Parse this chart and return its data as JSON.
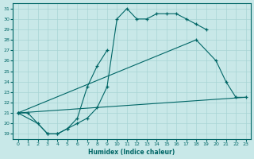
{
  "xlabel": "Humidex (Indice chaleur)",
  "background_color": "#c8e8e8",
  "line_color": "#006666",
  "grid_color": "#a8d4d4",
  "xlim": [
    -0.5,
    23.5
  ],
  "ylim": [
    18.5,
    31.5
  ],
  "xticks": [
    0,
    1,
    2,
    3,
    4,
    5,
    6,
    7,
    8,
    9,
    10,
    11,
    12,
    13,
    14,
    15,
    16,
    17,
    18,
    19,
    20,
    21,
    22,
    23
  ],
  "yticks": [
    19,
    20,
    21,
    22,
    23,
    24,
    25,
    26,
    27,
    28,
    29,
    30,
    31
  ],
  "line1_x": [
    0,
    2,
    3,
    4,
    5,
    6,
    7,
    8,
    9,
    10,
    11,
    12,
    13,
    14,
    15,
    16,
    17,
    18,
    19
  ],
  "line1_y": [
    21.0,
    20.0,
    19.0,
    19.0,
    19.5,
    20.0,
    20.5,
    21.5,
    23.5,
    30.0,
    31.0,
    30.0,
    30.0,
    30.5,
    30.5,
    30.5,
    30.0,
    29.5,
    29.0
  ],
  "line2_x": [
    0,
    1,
    3,
    4,
    5,
    6,
    7,
    8,
    9
  ],
  "line2_y": [
    21.0,
    21.0,
    19.0,
    19.0,
    19.5,
    20.5,
    23.5,
    25.5,
    27.0
  ],
  "line3_x": [
    0,
    18,
    20,
    21,
    22,
    23
  ],
  "line3_y": [
    21.0,
    28.0,
    26.0,
    24.0,
    22.5,
    22.5
  ],
  "line4_x": [
    0,
    23
  ],
  "line4_y": [
    21.0,
    22.5
  ]
}
